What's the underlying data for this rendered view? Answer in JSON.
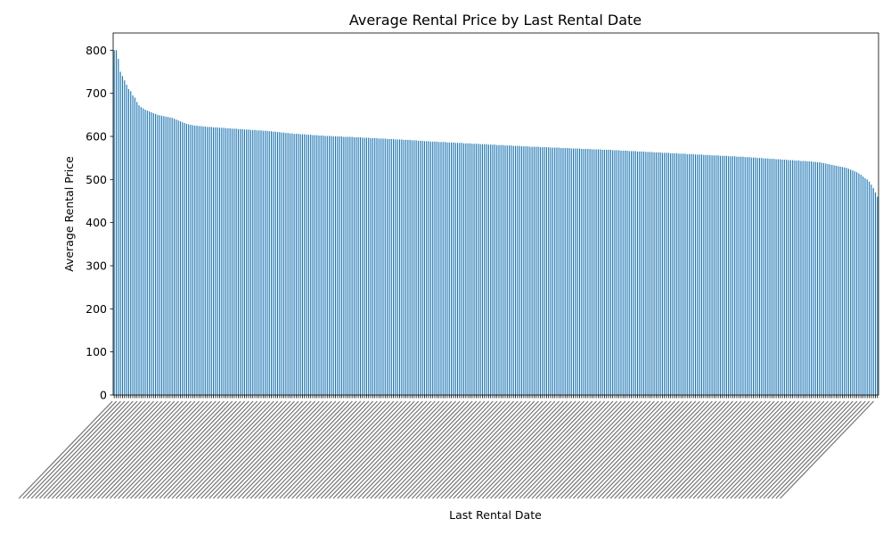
{
  "chart_data": {
    "type": "bar",
    "title": "Average Rental Price by Last Rental Date",
    "xlabel": "Last Rental Date",
    "ylabel": "Average Rental Price",
    "ylim": [
      0,
      840
    ],
    "yticks": [
      0,
      100,
      200,
      300,
      400,
      500,
      600,
      700,
      800
    ],
    "bar_color": "#1f77b4",
    "grid": false,
    "legend": "none",
    "sorted": "descending",
    "values": [
      800,
      800,
      780,
      750,
      740,
      730,
      720,
      710,
      705,
      695,
      690,
      680,
      672,
      668,
      665,
      662,
      660,
      658,
      656,
      654,
      652,
      650,
      649,
      648,
      647,
      646,
      645,
      644,
      643,
      641,
      639,
      637,
      635,
      633,
      631,
      629,
      628,
      627,
      626,
      625,
      625,
      624,
      624,
      623,
      623,
      622,
      622,
      622,
      621,
      621,
      621,
      620,
      620,
      620,
      619,
      619,
      619,
      618,
      618,
      618,
      617,
      617,
      617,
      616,
      616,
      616,
      615,
      615,
      615,
      614,
      614,
      614,
      613,
      613,
      613,
      612,
      612,
      611,
      611,
      610,
      610,
      609,
      609,
      608,
      608,
      607,
      607,
      606,
      606,
      606,
      605,
      605,
      605,
      604,
      604,
      604,
      603,
      603,
      603,
      602,
      602,
      602,
      601,
      601,
      601,
      601,
      600,
      600,
      600,
      600,
      600,
      599,
      599,
      599,
      599,
      599,
      598,
      598,
      598,
      598,
      597,
      597,
      597,
      597,
      596,
      596,
      596,
      596,
      595,
      595,
      595,
      595,
      594,
      594,
      594,
      594,
      593,
      593,
      593,
      593,
      592,
      592,
      592,
      592,
      591,
      591,
      591,
      590,
      590,
      590,
      589,
      589,
      589,
      588,
      588,
      588,
      588,
      587,
      587,
      587,
      587,
      586,
      586,
      586,
      586,
      585,
      585,
      585,
      585,
      584,
      584,
      584,
      584,
      583,
      583,
      583,
      583,
      582,
      582,
      582,
      582,
      581,
      581,
      581,
      581,
      580,
      580,
      580,
      580,
      579,
      579,
      579,
      579,
      578,
      578,
      578,
      578,
      577,
      577,
      577,
      577,
      576,
      576,
      576,
      576,
      576,
      575,
      575,
      575,
      575,
      575,
      574,
      574,
      574,
      574,
      574,
      573,
      573,
      573,
      573,
      573,
      572,
      572,
      572,
      572,
      572,
      571,
      571,
      571,
      571,
      571,
      570,
      570,
      570,
      570,
      570,
      569,
      569,
      569,
      569,
      569,
      568,
      568,
      568,
      568,
      567,
      567,
      567,
      567,
      566,
      566,
      566,
      566,
      565,
      565,
      565,
      565,
      564,
      564,
      564,
      564,
      563,
      563,
      563,
      563,
      562,
      562,
      562,
      562,
      561,
      561,
      561,
      561,
      560,
      560,
      560,
      560,
      559,
      559,
      559,
      559,
      558,
      558,
      558,
      558,
      557,
      557,
      557,
      557,
      556,
      556,
      556,
      556,
      555,
      555,
      555,
      555,
      554,
      554,
      554,
      554,
      553,
      553,
      553,
      553,
      552,
      552,
      552,
      551,
      551,
      551,
      550,
      550,
      550,
      549,
      549,
      549,
      548,
      548,
      548,
      547,
      547,
      547,
      546,
      546,
      546,
      545,
      545,
      545,
      544,
      544,
      544,
      543,
      543,
      543,
      542,
      542,
      542,
      541,
      541,
      540,
      540,
      539,
      538,
      537,
      536,
      535,
      534,
      533,
      532,
      531,
      530,
      529,
      528,
      527,
      525,
      523,
      521,
      519,
      517,
      514,
      511,
      507,
      503,
      500,
      495,
      488,
      480,
      470,
      460
    ]
  }
}
